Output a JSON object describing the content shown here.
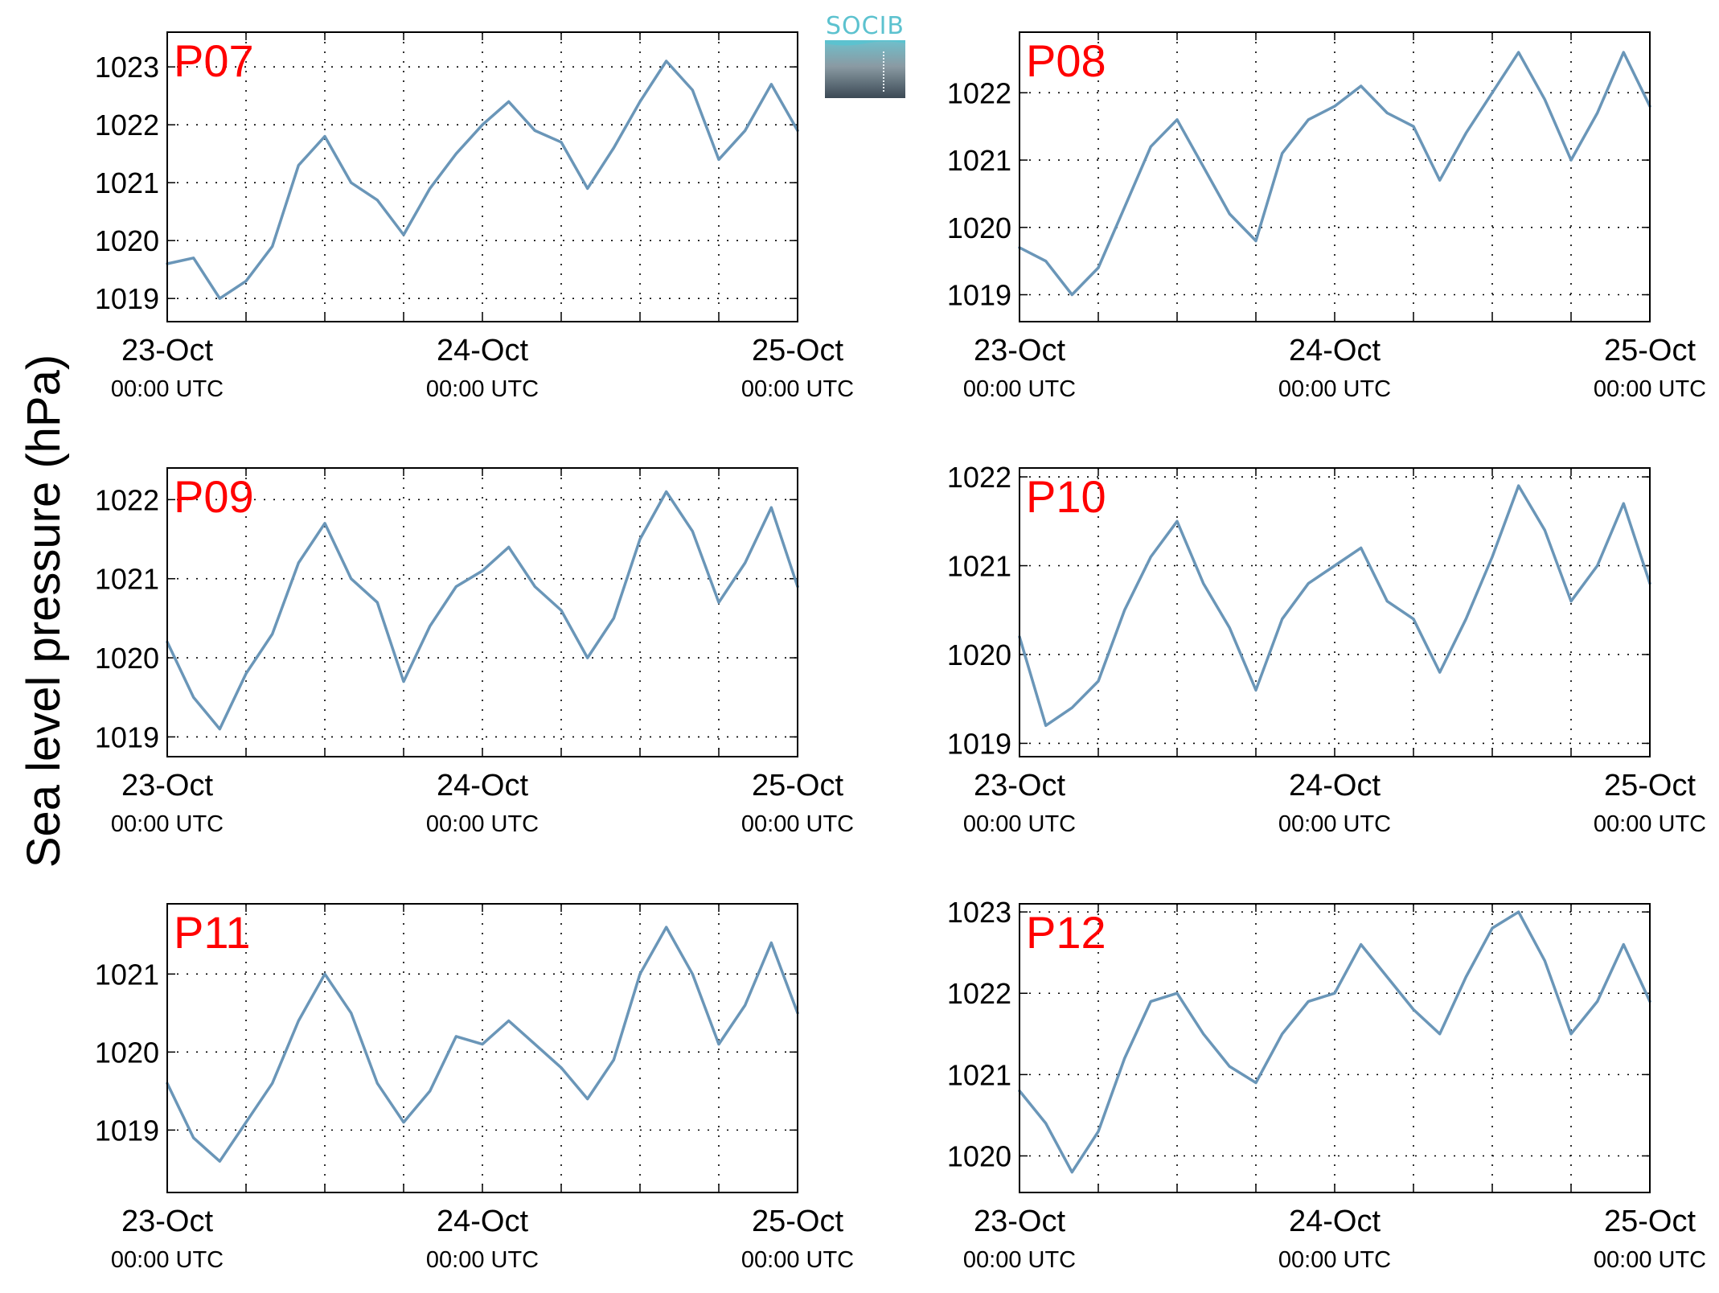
{
  "figure": {
    "ylabel": "Sea level pressure (hPa)",
    "logo_text": "SOCIB",
    "line_color": "#6a96b8",
    "station_label_color": "#ff0000"
  },
  "chart_data": [
    {
      "type": "line",
      "station": "P07",
      "x_ticks": [
        "23-Oct",
        "24-Oct",
        "25-Oct"
      ],
      "x_tick_sub": "00:00 UTC",
      "ylim": [
        1018.6,
        1023.6
      ],
      "yticks": [
        1019,
        1020,
        1021,
        1022,
        1023
      ],
      "grid": true,
      "x_hours": [
        0,
        2,
        4,
        6,
        8,
        10,
        12,
        14,
        16,
        18,
        20,
        22,
        24,
        26,
        28,
        30,
        32,
        34,
        36,
        38,
        40,
        42,
        44,
        46,
        48
      ],
      "series": [
        {
          "values": [
            1019.6,
            1019.7,
            1019.0,
            1019.3,
            1019.9,
            1021.3,
            1021.8,
            1021.0,
            1020.7,
            1020.1,
            1020.9,
            1021.5,
            1022.0,
            1022.4,
            1021.9,
            1021.7,
            1020.9,
            1021.6,
            1022.4,
            1023.1,
            1022.6,
            1021.4,
            1021.9,
            1022.7,
            1021.9
          ]
        }
      ]
    },
    {
      "type": "line",
      "station": "P08",
      "x_ticks": [
        "23-Oct",
        "24-Oct",
        "25-Oct"
      ],
      "x_tick_sub": "00:00 UTC",
      "ylim": [
        1018.6,
        1022.9
      ],
      "yticks": [
        1019,
        1020,
        1021,
        1022
      ],
      "grid": true,
      "x_hours": [
        0,
        2,
        4,
        6,
        8,
        10,
        12,
        14,
        16,
        18,
        20,
        22,
        24,
        26,
        28,
        30,
        32,
        34,
        36,
        38,
        40,
        42,
        44,
        46,
        48
      ],
      "series": [
        {
          "values": [
            1019.7,
            1019.5,
            1019.0,
            1019.4,
            1020.3,
            1021.2,
            1021.6,
            1020.9,
            1020.2,
            1019.8,
            1021.1,
            1021.6,
            1021.8,
            1022.1,
            1021.7,
            1021.5,
            1020.7,
            1021.4,
            1022.0,
            1022.6,
            1021.9,
            1021.0,
            1021.7,
            1022.6,
            1021.8
          ]
        }
      ]
    },
    {
      "type": "line",
      "station": "P09",
      "x_ticks": [
        "23-Oct",
        "24-Oct",
        "25-Oct"
      ],
      "x_tick_sub": "00:00 UTC",
      "ylim": [
        1018.75,
        1022.4
      ],
      "yticks": [
        1019,
        1020,
        1021,
        1022
      ],
      "grid": true,
      "x_hours": [
        0,
        2,
        4,
        6,
        8,
        10,
        12,
        14,
        16,
        18,
        20,
        22,
        24,
        26,
        28,
        30,
        32,
        34,
        36,
        38,
        40,
        42,
        44,
        46,
        48
      ],
      "series": [
        {
          "values": [
            1020.2,
            1019.5,
            1019.1,
            1019.8,
            1020.3,
            1021.2,
            1021.7,
            1021.0,
            1020.7,
            1019.7,
            1020.4,
            1020.9,
            1021.1,
            1021.4,
            1020.9,
            1020.6,
            1020.0,
            1020.5,
            1021.5,
            1022.1,
            1021.6,
            1020.7,
            1021.2,
            1021.9,
            1020.9
          ]
        }
      ]
    },
    {
      "type": "line",
      "station": "P10",
      "x_ticks": [
        "23-Oct",
        "24-Oct",
        "25-Oct"
      ],
      "x_tick_sub": "00:00 UTC",
      "ylim": [
        1018.85,
        1022.1
      ],
      "yticks": [
        1019,
        1020,
        1021,
        1022
      ],
      "grid": true,
      "x_hours": [
        0,
        2,
        4,
        6,
        8,
        10,
        12,
        14,
        16,
        18,
        20,
        22,
        24,
        26,
        28,
        30,
        32,
        34,
        36,
        38,
        40,
        42,
        44,
        46,
        48
      ],
      "series": [
        {
          "values": [
            1020.2,
            1019.2,
            1019.4,
            1019.7,
            1020.5,
            1021.1,
            1021.5,
            1020.8,
            1020.3,
            1019.6,
            1020.4,
            1020.8,
            1021.0,
            1021.2,
            1020.6,
            1020.4,
            1019.8,
            1020.4,
            1021.1,
            1021.9,
            1021.4,
            1020.6,
            1021.0,
            1021.7,
            1020.8
          ]
        }
      ]
    },
    {
      "type": "line",
      "station": "P11",
      "x_ticks": [
        "23-Oct",
        "24-Oct",
        "25-Oct"
      ],
      "x_tick_sub": "00:00 UTC",
      "ylim": [
        1018.2,
        1021.9
      ],
      "yticks": [
        1019,
        1020,
        1021
      ],
      "grid": true,
      "x_hours": [
        0,
        2,
        4,
        6,
        8,
        10,
        12,
        14,
        16,
        18,
        20,
        22,
        24,
        26,
        28,
        30,
        32,
        34,
        36,
        38,
        40,
        42,
        44,
        46,
        48
      ],
      "series": [
        {
          "values": [
            1019.6,
            1018.9,
            1018.6,
            1019.1,
            1019.6,
            1020.4,
            1021.0,
            1020.5,
            1019.6,
            1019.1,
            1019.5,
            1020.2,
            1020.1,
            1020.4,
            1020.1,
            1019.8,
            1019.4,
            1019.9,
            1021.0,
            1021.6,
            1021.0,
            1020.1,
            1020.6,
            1021.4,
            1020.5
          ]
        }
      ]
    },
    {
      "type": "line",
      "station": "P12",
      "x_ticks": [
        "23-Oct",
        "24-Oct",
        "25-Oct"
      ],
      "x_tick_sub": "00:00 UTC",
      "ylim": [
        1019.55,
        1023.1
      ],
      "yticks": [
        1020,
        1021,
        1022,
        1023
      ],
      "grid": true,
      "x_hours": [
        0,
        2,
        4,
        6,
        8,
        10,
        12,
        14,
        16,
        18,
        20,
        22,
        24,
        26,
        28,
        30,
        32,
        34,
        36,
        38,
        40,
        42,
        44,
        46,
        48
      ],
      "series": [
        {
          "values": [
            1020.8,
            1020.4,
            1019.8,
            1020.3,
            1021.2,
            1021.9,
            1022.0,
            1021.5,
            1021.1,
            1020.9,
            1021.5,
            1021.9,
            1022.0,
            1022.6,
            1022.2,
            1021.8,
            1021.5,
            1022.2,
            1022.8,
            1023.0,
            1022.4,
            1021.5,
            1021.9,
            1022.6,
            1021.9
          ]
        }
      ]
    }
  ]
}
